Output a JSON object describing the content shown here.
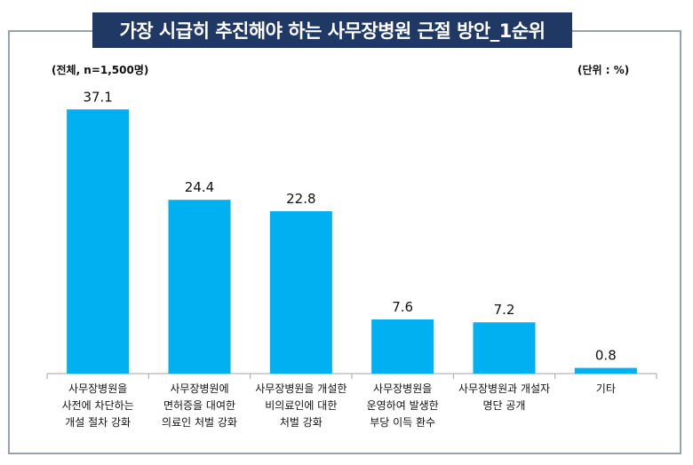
{
  "title": "가장 시급히 추진해야 하는 사무장병원 근절 방안_1순위",
  "sample_note": "(전체, n=1,500명)",
  "unit_note": "(단위 : %)",
  "colors": {
    "bar": "#00b0f0",
    "title_bg": "#1f3864",
    "axis": "#a6a6a6"
  },
  "chart_data": {
    "type": "bar",
    "title": "가장 시급히 추진해야 하는 사무장병원 근절 방안_1순위",
    "xlabel": "",
    "ylabel": "",
    "ylim": [
      0,
      40
    ],
    "grid": false,
    "categories": [
      "사무장병원을\n사전에 차단하는\n개설 절차 강화",
      "사무장병원에\n면허증을 대여한\n의료인 처벌 강화",
      "사무장병원을 개설한\n비의료인에 대한\n처벌 강화",
      "사무장병원을\n운영하여 발생한\n부당 이득 환수",
      "사무장병원과 개설자\n명단 공개",
      "기타"
    ],
    "values": [
      37.1,
      24.4,
      22.8,
      7.6,
      7.2,
      0.8
    ],
    "value_labels": [
      "37.1",
      "24.4",
      "22.8",
      "7.6",
      "7.2",
      "0.8"
    ]
  }
}
